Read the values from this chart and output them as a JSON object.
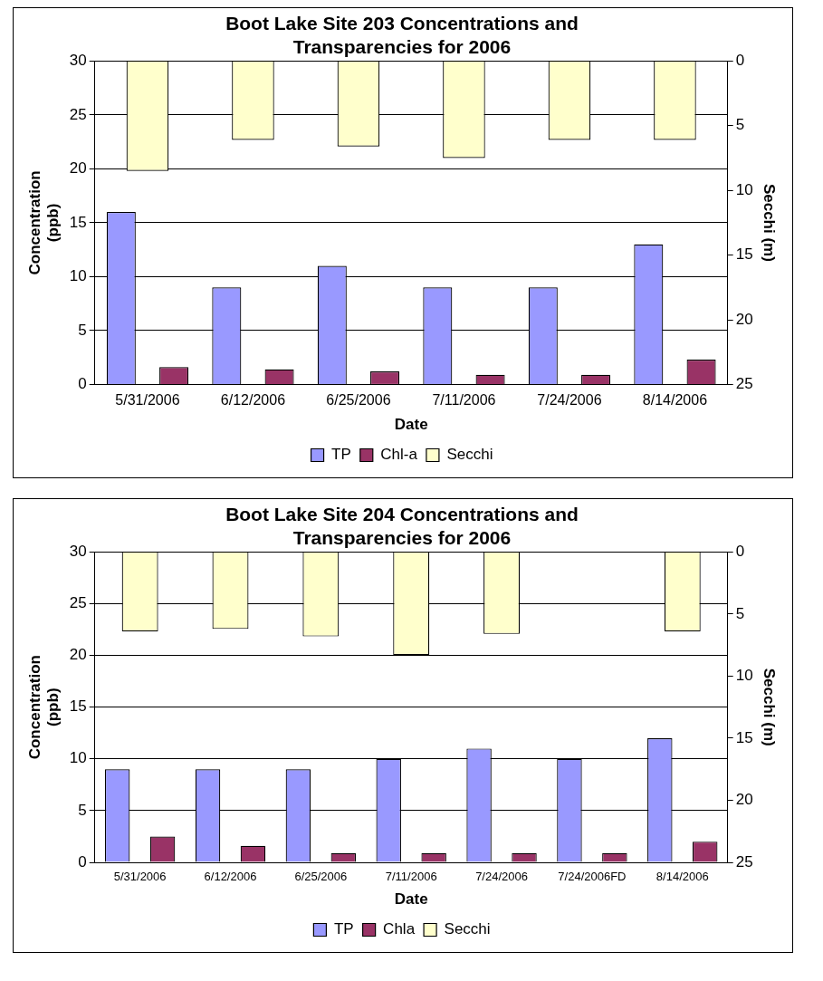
{
  "chart_data": [
    {
      "type": "bar",
      "title": "Boot Lake Site 203 Concentrations and Transparencies for 2006",
      "xlabel": "Date",
      "ylabel": "Concentration (ppb)",
      "y2label": "Secchi (m)",
      "categories": [
        "5/31/2006",
        "6/12/2006",
        "6/25/2006",
        "7/11/2006",
        "7/24/2006",
        "8/14/2006"
      ],
      "series": [
        {
          "name": "TP",
          "color": "#9999ff",
          "values": [
            16,
            9,
            11,
            9,
            9,
            13
          ]
        },
        {
          "name": "Chl-a",
          "color": "#993366",
          "values": [
            1.6,
            1.4,
            1.2,
            0.9,
            0.9,
            2.3
          ]
        },
        {
          "name": "Secchi",
          "color": "#ffffcc",
          "axis": "y2",
          "values": [
            8.5,
            6.1,
            6.6,
            7.5,
            6.1,
            6.1
          ]
        }
      ],
      "ylim": [
        0,
        30
      ],
      "yticks": [
        0,
        5,
        10,
        15,
        20,
        25,
        30
      ],
      "y2lim": [
        25,
        0
      ],
      "y2ticks": [
        0,
        5,
        10,
        15,
        20,
        25
      ],
      "grid": "y",
      "legend": "bottom"
    },
    {
      "type": "bar",
      "title": "Boot Lake Site 204 Concentrations and Transparencies for 2006",
      "xlabel": "Date",
      "ylabel": "Concentration (ppb)",
      "y2label": "Secchi (m)",
      "categories": [
        "5/31/2006",
        "6/12/2006",
        "6/25/2006",
        "7/11/2006",
        "7/24/2006",
        "7/24/2006FD",
        "8/14/2006"
      ],
      "series": [
        {
          "name": "TP",
          "color": "#9999ff",
          "values": [
            9,
            9,
            9,
            10,
            11,
            10,
            12
          ]
        },
        {
          "name": "Chla",
          "color": "#993366",
          "values": [
            2.5,
            1.6,
            0.9,
            0.9,
            0.9,
            0.9,
            2.0
          ]
        },
        {
          "name": "Secchi",
          "color": "#ffffcc",
          "axis": "y2",
          "values": [
            6.4,
            6.2,
            6.8,
            8.3,
            6.6,
            null,
            6.4
          ]
        }
      ],
      "ylim": [
        0,
        30
      ],
      "yticks": [
        0,
        5,
        10,
        15,
        20,
        25,
        30
      ],
      "y2lim": [
        25,
        0
      ],
      "y2ticks": [
        0,
        5,
        10,
        15,
        20,
        25
      ],
      "grid": "y",
      "legend": "bottom"
    }
  ]
}
